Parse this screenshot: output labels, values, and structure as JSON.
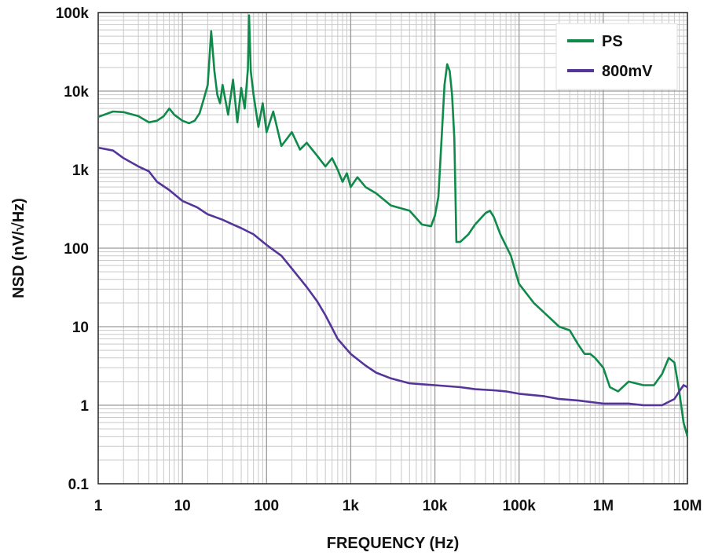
{
  "chart_data": {
    "type": "line",
    "title": "",
    "xlabel": "FREQUENCY (Hz)",
    "ylabel": "NSD (nV/√Hz)",
    "xscale": "log",
    "yscale": "log",
    "xlim": [
      1,
      10000000
    ],
    "ylim": [
      0.1,
      100000
    ],
    "grid": true,
    "legend_position": "top-right",
    "x_tick_labels": [
      "1",
      "10",
      "100",
      "1k",
      "10k",
      "100k",
      "1M",
      "10M"
    ],
    "y_tick_labels": [
      "100k",
      "10k",
      "1k",
      "100",
      "10",
      "1",
      "0.1"
    ],
    "series": [
      {
        "name": "PS",
        "color": "#0f8a4a",
        "x": [
          1,
          1.5,
          2,
          3,
          4,
          5,
          6,
          7,
          8,
          10,
          12,
          14,
          16,
          18,
          20,
          22,
          24,
          26,
          28,
          30,
          35,
          40,
          45,
          50,
          55,
          60,
          62,
          65,
          70,
          80,
          90,
          100,
          120,
          150,
          200,
          250,
          300,
          400,
          500,
          600,
          700,
          800,
          900,
          1000,
          1200,
          1500,
          2000,
          3000,
          5000,
          7000,
          9000,
          10000,
          11000,
          12000,
          13000,
          14000,
          15000,
          16000,
          17000,
          18000,
          20000,
          25000,
          30000,
          40000,
          45000,
          50000,
          60000,
          80000,
          100000,
          150000,
          200000,
          300000,
          400000,
          500000,
          600000,
          700000,
          800000,
          1000000,
          1200000,
          1500000,
          2000000,
          3000000,
          4000000,
          5000000,
          6000000,
          7000000,
          8000000,
          9000000,
          10000000
        ],
        "y": [
          4700,
          5500,
          5400,
          4800,
          4000,
          4200,
          4800,
          6000,
          5000,
          4200,
          3900,
          4200,
          5200,
          8000,
          12000,
          58000,
          18000,
          9000,
          7000,
          12000,
          5000,
          14000,
          4000,
          11000,
          6000,
          19000,
          92000,
          18000,
          9000,
          3500,
          7000,
          3000,
          5500,
          2000,
          3000,
          1800,
          2200,
          1500,
          1100,
          1400,
          1000,
          700,
          900,
          600,
          800,
          600,
          500,
          350,
          300,
          200,
          190,
          260,
          450,
          2500,
          12000,
          22000,
          18000,
          9000,
          2500,
          120,
          120,
          150,
          200,
          280,
          300,
          250,
          150,
          80,
          35,
          20,
          15,
          10,
          9,
          6,
          4.5,
          4.5,
          4,
          3,
          1.7,
          1.5,
          2.0,
          1.8,
          1.8,
          2.5,
          4,
          3.5,
          1.5,
          0.6,
          0.4
        ]
      },
      {
        "name": "800mV",
        "color": "#55359a",
        "x": [
          1,
          1.5,
          2,
          3,
          4,
          5,
          7,
          10,
          15,
          20,
          30,
          40,
          50,
          70,
          100,
          150,
          200,
          300,
          400,
          500,
          700,
          1000,
          1500,
          2000,
          3000,
          5000,
          7000,
          10000,
          20000,
          30000,
          50000,
          70000,
          100000,
          200000,
          300000,
          500000,
          1000000,
          2000000,
          3000000,
          5000000,
          7000000,
          8000000,
          9000000,
          10000000
        ],
        "y": [
          1900,
          1750,
          1400,
          1100,
          950,
          700,
          550,
          400,
          330,
          270,
          230,
          200,
          180,
          150,
          110,
          80,
          55,
          32,
          21,
          14,
          7,
          4.5,
          3.2,
          2.6,
          2.2,
          1.9,
          1.85,
          1.8,
          1.7,
          1.6,
          1.55,
          1.5,
          1.4,
          1.3,
          1.2,
          1.15,
          1.05,
          1.05,
          1.0,
          1.0,
          1.2,
          1.5,
          1.8,
          1.7
        ]
      }
    ]
  }
}
